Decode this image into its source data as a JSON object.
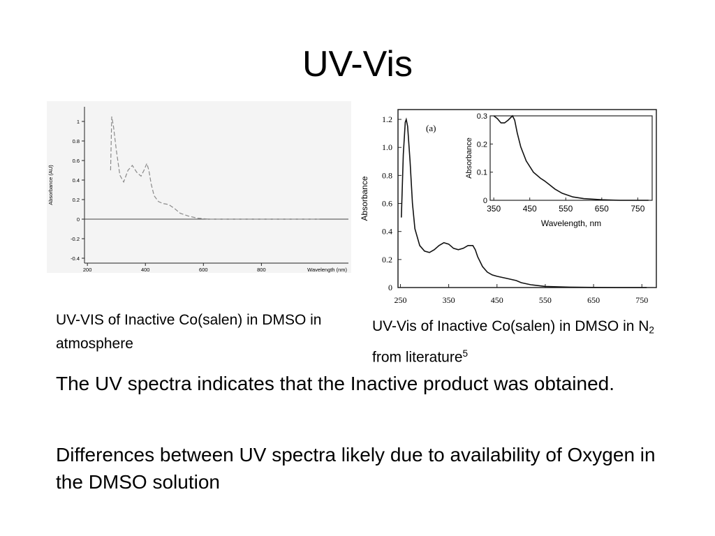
{
  "slide": {
    "title": "UV-Vis",
    "caption_left": "UV-VIS of Inactive Co(salen) in DMSO in atmosphere",
    "caption_right": {
      "part1": "UV-Vis of Inactive Co(salen) in DMSO in N",
      "subscript": "2",
      "part2": " from literature",
      "superscript": "5"
    },
    "paragraphs": [
      "The UV spectra indicates that the Inactive product was obtained.",
      "Differences between UV spectra likely due to availability of Oxygen in the DMSO solution"
    ]
  },
  "chart_data": [
    {
      "type": "line",
      "xlabel": "Wavelength (nm)",
      "ylabel": "Absorbance (AU)",
      "xlim": [
        190,
        1100
      ],
      "ylim": [
        -0.45,
        1.15
      ],
      "xticks": [
        200,
        400,
        600,
        800
      ],
      "xtick_labels": [
        "200",
        "400",
        "600",
        "800"
      ],
      "yticks": [
        1,
        0.8,
        0.6,
        0.4,
        0.2,
        0,
        -0.2,
        -0.4
      ],
      "ytick_labels": [
        "1",
        "0.8",
        "0.6",
        "0.4",
        "0.2",
        "0",
        "-0.2",
        "-0.4"
      ],
      "line_style": "dashed",
      "series": [
        {
          "x": [
            280,
            284,
            290,
            300,
            312,
            325,
            340,
            355,
            370,
            385,
            395,
            405,
            412,
            420,
            430,
            445,
            460,
            480,
            500,
            520,
            550,
            580,
            620,
            700,
            800,
            900,
            1000
          ],
          "y": [
            0.5,
            1.05,
            0.95,
            0.7,
            0.45,
            0.38,
            0.5,
            0.55,
            0.48,
            0.44,
            0.5,
            0.57,
            0.5,
            0.36,
            0.24,
            0.18,
            0.16,
            0.15,
            0.11,
            0.06,
            0.03,
            0.01,
            0.0,
            0.0,
            0.0,
            0.0,
            0.0
          ]
        }
      ]
    },
    {
      "type": "line",
      "panel_label": "(a)",
      "xlabel": "",
      "ylabel": "Absorbance",
      "xlim": [
        245,
        780
      ],
      "ylim": [
        0,
        1.27
      ],
      "xticks": [
        250,
        350,
        450,
        550,
        650,
        750
      ],
      "xtick_labels": [
        "250",
        "350",
        "450",
        "550",
        "650",
        "750"
      ],
      "yticks": [
        0,
        0.2,
        0.4,
        0.6,
        0.8,
        1.0,
        1.2
      ],
      "ytick_labels": [
        "0",
        "0.2",
        "0.4",
        "0.6",
        "0.8",
        "1.0",
        "1.2"
      ],
      "series": [
        {
          "x": [
            252,
            256,
            260,
            262,
            265,
            270,
            275,
            280,
            290,
            300,
            310,
            320,
            330,
            340,
            350,
            360,
            370,
            380,
            390,
            400,
            405,
            410,
            420,
            430,
            440,
            450,
            470,
            490,
            500,
            520,
            550,
            600,
            650,
            700,
            760
          ],
          "y": [
            0.5,
            0.95,
            1.18,
            1.2,
            1.15,
            0.9,
            0.6,
            0.42,
            0.3,
            0.26,
            0.25,
            0.27,
            0.3,
            0.32,
            0.31,
            0.28,
            0.27,
            0.28,
            0.3,
            0.3,
            0.27,
            0.22,
            0.15,
            0.11,
            0.09,
            0.08,
            0.065,
            0.05,
            0.035,
            0.02,
            0.008,
            0.003,
            0.001,
            0.0,
            0.0
          ]
        }
      ],
      "inset": {
        "xlabel": "Wavelength, nm",
        "ylabel": "Absorbance",
        "xlim": [
          340,
          790
        ],
        "ylim": [
          0,
          0.3
        ],
        "xticks": [
          350,
          450,
          550,
          650,
          750
        ],
        "xtick_labels": [
          "350",
          "450",
          "550",
          "650",
          "750"
        ],
        "yticks": [
          0,
          0.1,
          0.2,
          0.3
        ],
        "ytick_labels": [
          "0",
          "0.1",
          "0.2",
          "0.3"
        ],
        "series": [
          {
            "x": [
              350,
              360,
              370,
              380,
              390,
              398,
              402,
              408,
              415,
              425,
              440,
              460,
              480,
              490,
              500,
              520,
              540,
              570,
              600,
              650,
              700,
              780
            ],
            "y": [
              0.3,
              0.29,
              0.275,
              0.275,
              0.285,
              0.295,
              0.3,
              0.285,
              0.24,
              0.19,
              0.14,
              0.1,
              0.078,
              0.07,
              0.06,
              0.04,
              0.025,
              0.012,
              0.006,
              0.002,
              0.0,
              0.0
            ]
          }
        ]
      }
    }
  ]
}
